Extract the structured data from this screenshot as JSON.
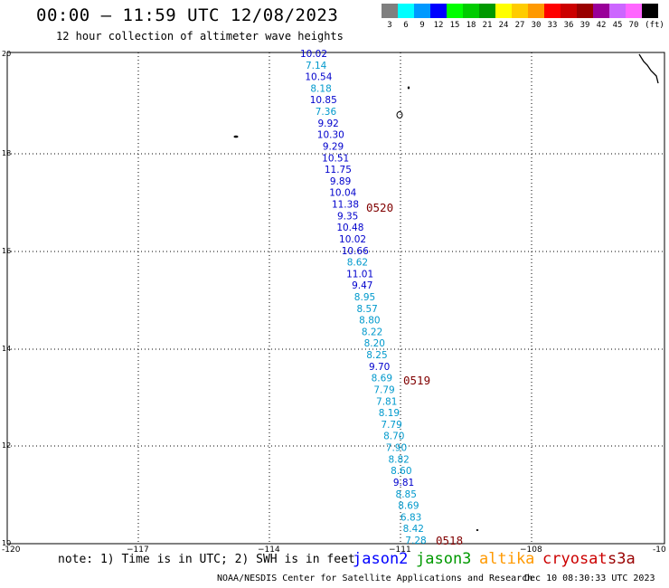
{
  "header": {
    "title": "00:00 – 11:59 UTC 12/08/2023",
    "subtitle": "12 hour collection of altimeter wave heights"
  },
  "color_scale": {
    "unit": "(ft)",
    "swatches": [
      {
        "label": "3",
        "color": "#7f7f7f"
      },
      {
        "label": "6",
        "color": "#00ffff"
      },
      {
        "label": "9",
        "color": "#0099ff"
      },
      {
        "label": "12",
        "color": "#0000ff"
      },
      {
        "label": "15",
        "color": "#00ff00"
      },
      {
        "label": "18",
        "color": "#00cc00"
      },
      {
        "label": "21",
        "color": "#009900"
      },
      {
        "label": "24",
        "color": "#ffff00"
      },
      {
        "label": "27",
        "color": "#ffcc00"
      },
      {
        "label": "30",
        "color": "#ff9900"
      },
      {
        "label": "33",
        "color": "#ff0000"
      },
      {
        "label": "36",
        "color": "#cc0000"
      },
      {
        "label": "39",
        "color": "#990000"
      },
      {
        "label": "42",
        "color": "#990099"
      },
      {
        "label": "45",
        "color": "#cc66ff"
      },
      {
        "label": "70",
        "color": "#ff66ff"
      },
      {
        "label": "",
        "color": "#000000"
      }
    ]
  },
  "map": {
    "lat_labels": [
      "20",
      "18",
      "16",
      "14",
      "12",
      "10"
    ],
    "lon_labels": [
      "-120",
      "−117",
      "−114",
      "−111",
      "−108",
      "-10"
    ],
    "time_labels": [
      "0520",
      "0519",
      "0518"
    ],
    "time_color": "#800000",
    "track": [
      {
        "v": "10.02",
        "c": "#0000cc"
      },
      {
        "v": "7.14",
        "c": "#0099cc"
      },
      {
        "v": "10.54",
        "c": "#0000cc"
      },
      {
        "v": "8.18",
        "c": "#0099cc"
      },
      {
        "v": "10.85",
        "c": "#0000cc"
      },
      {
        "v": "7.36",
        "c": "#0099cc"
      },
      {
        "v": "9.92",
        "c": "#0000cc"
      },
      {
        "v": "10.30",
        "c": "#0000cc"
      },
      {
        "v": "9.29",
        "c": "#0000cc"
      },
      {
        "v": "10.51",
        "c": "#0000cc"
      },
      {
        "v": "11.75",
        "c": "#0000cc"
      },
      {
        "v": "9.89",
        "c": "#0000cc"
      },
      {
        "v": "10.04",
        "c": "#0000cc"
      },
      {
        "v": "11.38",
        "c": "#0000cc"
      },
      {
        "v": "9.35",
        "c": "#0000cc"
      },
      {
        "v": "10.48",
        "c": "#0000cc"
      },
      {
        "v": "10.02",
        "c": "#0000cc"
      },
      {
        "v": "10.66",
        "c": "#0000cc"
      },
      {
        "v": "8.62",
        "c": "#0099cc"
      },
      {
        "v": "11.01",
        "c": "#0000cc"
      },
      {
        "v": "9.47",
        "c": "#0000cc"
      },
      {
        "v": "8.95",
        "c": "#0099cc"
      },
      {
        "v": "8.57",
        "c": "#0099cc"
      },
      {
        "v": "8.80",
        "c": "#0099cc"
      },
      {
        "v": "8.22",
        "c": "#0099cc"
      },
      {
        "v": "8.20",
        "c": "#0099cc"
      },
      {
        "v": "8.25",
        "c": "#0099cc"
      },
      {
        "v": "9.70",
        "c": "#0000cc"
      },
      {
        "v": "8.69",
        "c": "#0099cc"
      },
      {
        "v": "7.79",
        "c": "#0099cc"
      },
      {
        "v": "7.81",
        "c": "#0099cc"
      },
      {
        "v": "8.19",
        "c": "#0099cc"
      },
      {
        "v": "7.79",
        "c": "#0099cc"
      },
      {
        "v": "8.70",
        "c": "#0099cc"
      },
      {
        "v": "7.90",
        "c": "#0099cc"
      },
      {
        "v": "8.82",
        "c": "#0099cc"
      },
      {
        "v": "8.60",
        "c": "#0099cc"
      },
      {
        "v": "9.81",
        "c": "#0000cc"
      },
      {
        "v": "8.85",
        "c": "#0099cc"
      },
      {
        "v": "8.69",
        "c": "#0099cc"
      },
      {
        "v": "6.83",
        "c": "#0099cc"
      },
      {
        "v": "8.42",
        "c": "#0099cc"
      },
      {
        "v": "7.28",
        "c": "#0099cc"
      }
    ]
  },
  "footer": {
    "note": "note: 1) Time is in UTC; 2) SWH is in feet",
    "missions": [
      {
        "name": "jason2",
        "color": "#0000ff"
      },
      {
        "name": "jason3",
        "color": "#009900"
      },
      {
        "name": "altika",
        "color": "#ff9900"
      },
      {
        "name": "cryosat",
        "color": "#cc0000"
      },
      {
        "name": "s3a",
        "color": "#990000"
      }
    ],
    "credit": "NOAA/NESDIS Center for Satellite Applications and Research",
    "timestamp": "Dec 10 08:30:33 UTC 2023"
  }
}
